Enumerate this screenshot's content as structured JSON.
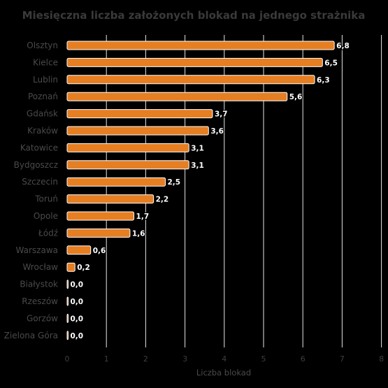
{
  "chart_data": {
    "type": "bar",
    "orientation": "horizontal",
    "title": "Miesięczna liczba założonych blokad na jednego strażnika",
    "xlabel": "Liczba blokad",
    "ylabel": "",
    "categories": [
      "Olsztyn",
      "Kielce",
      "Lublin",
      "Poznań",
      "Gdańsk",
      "Kraków",
      "Katowice",
      "Bydgoszcz",
      "Szczecin",
      "Toruń",
      "Opole",
      "Łódź",
      "Warszawa",
      "Wrocław",
      "Białystok",
      "Rzeszów",
      "Gorzów",
      "Zielona Góra"
    ],
    "values": [
      6.8,
      6.5,
      6.3,
      5.6,
      3.7,
      3.6,
      3.1,
      3.1,
      2.5,
      2.2,
      1.7,
      1.6,
      0.6,
      0.2,
      0.0,
      0.0,
      0.0,
      0.0
    ],
    "data_labels": [
      "6,8",
      "6,5",
      "6,3",
      "5,6",
      "3,7",
      "3,6",
      "3,1",
      "3,1",
      "2,5",
      "2,2",
      "1,7",
      "1,6",
      "0,6",
      "0,2",
      "0,0",
      "0,0",
      "0,0",
      "0,0"
    ],
    "xticks": [
      "0",
      "1",
      "2",
      "3",
      "4",
      "5",
      "6",
      "7",
      "8"
    ],
    "xlim": [
      0,
      8
    ],
    "grid": true,
    "legend": "none",
    "bar_color": "#e67e22",
    "bar_edge_color": "#ffffff",
    "background_color": "#000000"
  }
}
